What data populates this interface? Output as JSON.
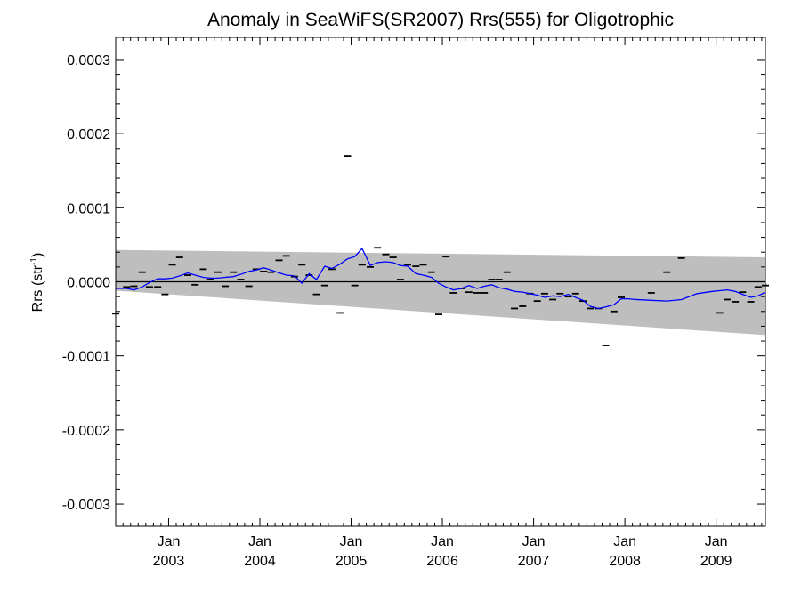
{
  "chart_data": {
    "type": "line",
    "title": "Anomaly in SeaWiFS(SR2007) Rrs(555) for Oligotrophic",
    "ylabel": "Rrs (str",
    "ylabel_superscript": "-1",
    "ylabel_suffix": ")",
    "xlim": [
      2002.42,
      2009.54
    ],
    "ylim": [
      -0.00033,
      0.00033
    ],
    "yticks": [
      {
        "value": 0.0003,
        "label": "0.0003"
      },
      {
        "value": 0.0002,
        "label": "0.0002"
      },
      {
        "value": 0.0001,
        "label": "0.0001"
      },
      {
        "value": 0.0,
        "label": "0.0000"
      },
      {
        "value": -0.0001,
        "label": "-0.0001"
      },
      {
        "value": -0.0002,
        "label": "-0.0002"
      },
      {
        "value": -0.0003,
        "label": "-0.0003"
      }
    ],
    "xticks": [
      {
        "value": 2003.0,
        "month": "Jan",
        "year": "2003"
      },
      {
        "value": 2004.0,
        "month": "Jan",
        "year": "2004"
      },
      {
        "value": 2005.0,
        "month": "Jan",
        "year": "2005"
      },
      {
        "value": 2006.0,
        "month": "Jan",
        "year": "2006"
      },
      {
        "value": 2007.0,
        "month": "Jan",
        "year": "2007"
      },
      {
        "value": 2008.0,
        "month": "Jan",
        "year": "2008"
      },
      {
        "value": 2009.0,
        "month": "Jan",
        "year": "2009"
      }
    ],
    "zero_line": 0,
    "uncertainty_band": {
      "x": [
        2002.42,
        2009.54
      ],
      "upper": [
        4.3e-05,
        3.3e-05
      ],
      "lower": [
        -1.2e-05,
        -7.2e-05
      ],
      "color": "#bebebe"
    },
    "series": [
      {
        "style": "markers",
        "marker": "dash",
        "color": "#000000",
        "x": [
          2002.42,
          2002.54,
          2002.62,
          2002.71,
          2002.79,
          2002.88,
          2002.96,
          2003.04,
          2003.12,
          2003.21,
          2003.29,
          2003.38,
          2003.46,
          2003.54,
          2003.62,
          2003.71,
          2003.79,
          2003.88,
          2003.96,
          2004.04,
          2004.12,
          2004.21,
          2004.29,
          2004.38,
          2004.46,
          2004.54,
          2004.62,
          2004.71,
          2004.79,
          2004.88,
          2004.96,
          2005.04,
          2005.12,
          2005.21,
          2005.29,
          2005.38,
          2005.46,
          2005.54,
          2005.62,
          2005.71,
          2005.79,
          2005.88,
          2005.96,
          2006.04,
          2006.12,
          2006.21,
          2006.29,
          2006.38,
          2006.46,
          2006.54,
          2006.62,
          2006.71,
          2006.79,
          2006.88,
          2006.96,
          2007.04,
          2007.12,
          2007.21,
          2007.29,
          2007.38,
          2007.46,
          2007.54,
          2007.62,
          2007.71,
          2007.79,
          2007.88,
          2007.96,
          2008.29,
          2008.46,
          2008.62,
          2009.04,
          2009.12,
          2009.21,
          2009.29,
          2009.38,
          2009.46,
          2009.54
        ],
        "y": [
          -4.3e-05,
          -7e-06,
          -6e-06,
          1.3e-05,
          -7e-06,
          -7e-06,
          -1.7e-05,
          2.3e-05,
          3.3e-05,
          9e-06,
          -4e-06,
          1.7e-05,
          3e-06,
          1.3e-05,
          -6e-06,
          1.3e-05,
          3e-06,
          -6e-06,
          1.7e-05,
          1.4e-05,
          1.3e-05,
          2.9e-05,
          3.5e-05,
          7e-06,
          2.3e-05,
          9e-06,
          -1.7e-05,
          -5e-06,
          1.7e-05,
          -4.2e-05,
          0.00017,
          -5e-06,
          2.3e-05,
          2e-05,
          4.6e-05,
          3.7e-05,
          3.3e-05,
          3e-06,
          2.3e-05,
          2.1e-05,
          2.3e-05,
          1.3e-05,
          -4.4e-05,
          3.4e-05,
          -1.5e-05,
          -9e-06,
          -1.4e-05,
          -1.5e-05,
          -1.5e-05,
          3e-06,
          3e-06,
          1.3e-05,
          -3.6e-05,
          -3.3e-05,
          -1.6e-05,
          -2.6e-05,
          -1.6e-05,
          -2.4e-05,
          -1.6e-05,
          -2e-05,
          -1.6e-05,
          -2.6e-05,
          -3.6e-05,
          -3.6e-05,
          -8.6e-05,
          -4e-05,
          -2.1e-05,
          -1.5e-05,
          1.3e-05,
          3.2e-05,
          -4.2e-05,
          -2.4e-05,
          -2.7e-05,
          -1.4e-05,
          -2.7e-05,
          -7e-06,
          -5e-06
        ]
      },
      {
        "style": "line",
        "color": "#0000ff",
        "x": [
          2002.42,
          2002.54,
          2002.62,
          2002.71,
          2002.79,
          2002.88,
          2002.96,
          2003.04,
          2003.12,
          2003.21,
          2003.29,
          2003.38,
          2003.46,
          2003.54,
          2003.62,
          2003.71,
          2003.79,
          2003.88,
          2003.96,
          2004.04,
          2004.12,
          2004.21,
          2004.29,
          2004.38,
          2004.46,
          2004.54,
          2004.62,
          2004.71,
          2004.79,
          2004.88,
          2004.96,
          2005.04,
          2005.12,
          2005.21,
          2005.29,
          2005.38,
          2005.46,
          2005.54,
          2005.62,
          2005.71,
          2005.79,
          2005.88,
          2005.96,
          2006.04,
          2006.12,
          2006.21,
          2006.29,
          2006.38,
          2006.46,
          2006.54,
          2006.62,
          2006.71,
          2006.79,
          2006.88,
          2006.96,
          2007.04,
          2007.12,
          2007.21,
          2007.29,
          2007.38,
          2007.46,
          2007.54,
          2007.62,
          2007.71,
          2007.79,
          2007.88,
          2007.96,
          2008.04,
          2008.12,
          2008.29,
          2008.46,
          2008.62,
          2008.79,
          2008.96,
          2009.04,
          2009.12,
          2009.21,
          2009.29,
          2009.38,
          2009.46,
          2009.54
        ],
        "y": [
          -9e-06,
          -9e-06,
          -1.1e-05,
          -7e-06,
          -1e-06,
          4e-06,
          4e-06,
          5e-06,
          8e-06,
          1.2e-05,
          9e-06,
          6e-06,
          5e-06,
          5e-06,
          6e-06,
          7e-06,
          1e-05,
          1.4e-05,
          1.6e-05,
          1.9e-05,
          1.6e-05,
          1.2e-05,
          9e-06,
          8e-06,
          -2e-06,
          1.1e-05,
          3e-06,
          2.1e-05,
          1.8e-05,
          2.4e-05,
          3.1e-05,
          3.4e-05,
          4.5e-05,
          2.2e-05,
          2.6e-05,
          2.7e-05,
          2.6e-05,
          2.2e-05,
          2.1e-05,
          1.1e-05,
          9e-06,
          6e-06,
          -2e-06,
          -7e-06,
          -1.1e-05,
          -9e-06,
          -5e-06,
          -9e-06,
          -6e-06,
          -4e-06,
          -8e-06,
          -1e-05,
          -1.3e-05,
          -1.4e-05,
          -1.6e-05,
          -1.8e-05,
          -2.1e-05,
          -1.9e-05,
          -2e-05,
          -1.7e-05,
          -2.1e-05,
          -2.5e-05,
          -3.3e-05,
          -3.6e-05,
          -3.4e-05,
          -3.1e-05,
          -2.3e-05,
          -2.3e-05,
          -2.4e-05,
          -2.5e-05,
          -2.6e-05,
          -2.4e-05,
          -1.6e-05,
          -1.3e-05,
          -1.2e-05,
          -1.1e-05,
          -1.3e-05,
          -1.7e-05,
          -2.1e-05,
          -1.9e-05,
          -1.4e-05
        ]
      }
    ]
  }
}
